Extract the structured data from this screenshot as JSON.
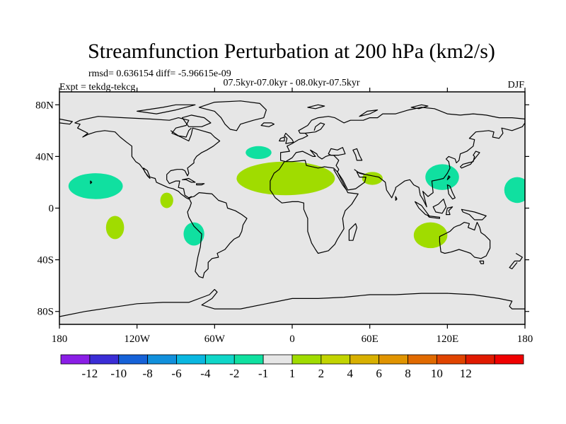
{
  "chart_data": {
    "type": "contour-map",
    "title": "Streamfunction Perturbation at 200 hPa (km2/s)",
    "stats_text": "rmsd= 0.636154 diff= -5.96615e-09",
    "left_label": "Expt = tekdg-tekcg",
    "center_label": "07.5kyr-07.0kyr - 08.0kyr-07.5kyr",
    "right_label": "DJF",
    "projection": "cylindrical-equidistant",
    "lon_range": [
      -180,
      180
    ],
    "lat_range": [
      -90,
      90
    ],
    "x_ticks": [
      {
        "lon": -180,
        "label": "180"
      },
      {
        "lon": -120,
        "label": "120W"
      },
      {
        "lon": -60,
        "label": "60W"
      },
      {
        "lon": 0,
        "label": "0"
      },
      {
        "lon": 60,
        "label": "60E"
      },
      {
        "lon": 120,
        "label": "120E"
      },
      {
        "lon": 180,
        "label": "180"
      }
    ],
    "y_ticks": [
      {
        "lat": 80,
        "label": "80N"
      },
      {
        "lat": 40,
        "label": "40N"
      },
      {
        "lat": 0,
        "label": "0"
      },
      {
        "lat": -40,
        "label": "40S"
      },
      {
        "lat": -80,
        "label": "80S"
      }
    ],
    "colorbar": {
      "colors": [
        "#8a1ee6",
        "#3b2dd6",
        "#1662d8",
        "#1190dc",
        "#0ab7e0",
        "#10d6c8",
        "#10e0a0",
        "#e6e6e6",
        "#a0dc00",
        "#c2d400",
        "#d8b000",
        "#e09400",
        "#e06a00",
        "#e04400",
        "#e01a00",
        "#f00000"
      ],
      "levels": [
        {
          "value": -12,
          "label": "-12"
        },
        {
          "value": -10,
          "label": "-10"
        },
        {
          "value": -8,
          "label": "-8"
        },
        {
          "value": -6,
          "label": "-6"
        },
        {
          "value": -4,
          "label": "-4"
        },
        {
          "value": -2,
          "label": "-2"
        },
        {
          "value": -1,
          "label": "-1"
        },
        {
          "value": 1,
          "label": "1"
        },
        {
          "value": 2,
          "label": "2"
        },
        {
          "value": 4,
          "label": "4"
        },
        {
          "value": 6,
          "label": "6"
        },
        {
          "value": 8,
          "label": "8"
        },
        {
          "value": 10,
          "label": "10"
        },
        {
          "value": 12,
          "label": "12"
        }
      ]
    },
    "anomaly_regions": [
      {
        "name": "north-pacific-east-negative",
        "level_range": [
          -2,
          -1
        ],
        "color": "#10e0a0",
        "center": [
          -152,
          17
        ],
        "radius": [
          21,
          10
        ]
      },
      {
        "name": "north-pacific-west-negative",
        "level_range": [
          -2,
          -1
        ],
        "color": "#10e0a0",
        "center": [
          174,
          14
        ],
        "radius": [
          10,
          10
        ]
      },
      {
        "name": "eastern-pacific-positive",
        "level_range": [
          1,
          2
        ],
        "color": "#a0dc00",
        "center": [
          -97,
          6
        ],
        "radius": [
          5,
          6
        ]
      },
      {
        "name": "south-pacific-positive",
        "level_range": [
          1,
          2
        ],
        "color": "#a0dc00",
        "center": [
          -137,
          -15
        ],
        "radius": [
          7,
          9
        ]
      },
      {
        "name": "south-atlantic-negative",
        "level_range": [
          -2,
          -1
        ],
        "color": "#10e0a0",
        "center": [
          -76,
          -20
        ],
        "radius": [
          8,
          9
        ]
      },
      {
        "name": "north-atlantic-negative",
        "level_range": [
          -2,
          -1
        ],
        "color": "#10e0a0",
        "center": [
          -26,
          43
        ],
        "radius": [
          10,
          5
        ]
      },
      {
        "name": "atlantic-mediterranean-positive",
        "level_range": [
          1,
          2
        ],
        "color": "#a0dc00",
        "center": [
          -5,
          23
        ],
        "radius": [
          38,
          13
        ]
      },
      {
        "name": "arabian-sea-positive",
        "level_range": [
          1,
          2
        ],
        "color": "#a0dc00",
        "center": [
          62,
          23
        ],
        "radius": [
          8,
          5
        ]
      },
      {
        "name": "east-asia-negative",
        "level_range": [
          -2,
          -1
        ],
        "color": "#10e0a0",
        "center": [
          116,
          24
        ],
        "radius": [
          13,
          10
        ]
      },
      {
        "name": "indian-ocean-positive",
        "level_range": [
          1,
          2
        ],
        "color": "#a0dc00",
        "center": [
          107,
          -21
        ],
        "radius": [
          13,
          10
        ]
      }
    ],
    "map_background": "#e6e6e6",
    "coastline_color": "#000000"
  }
}
